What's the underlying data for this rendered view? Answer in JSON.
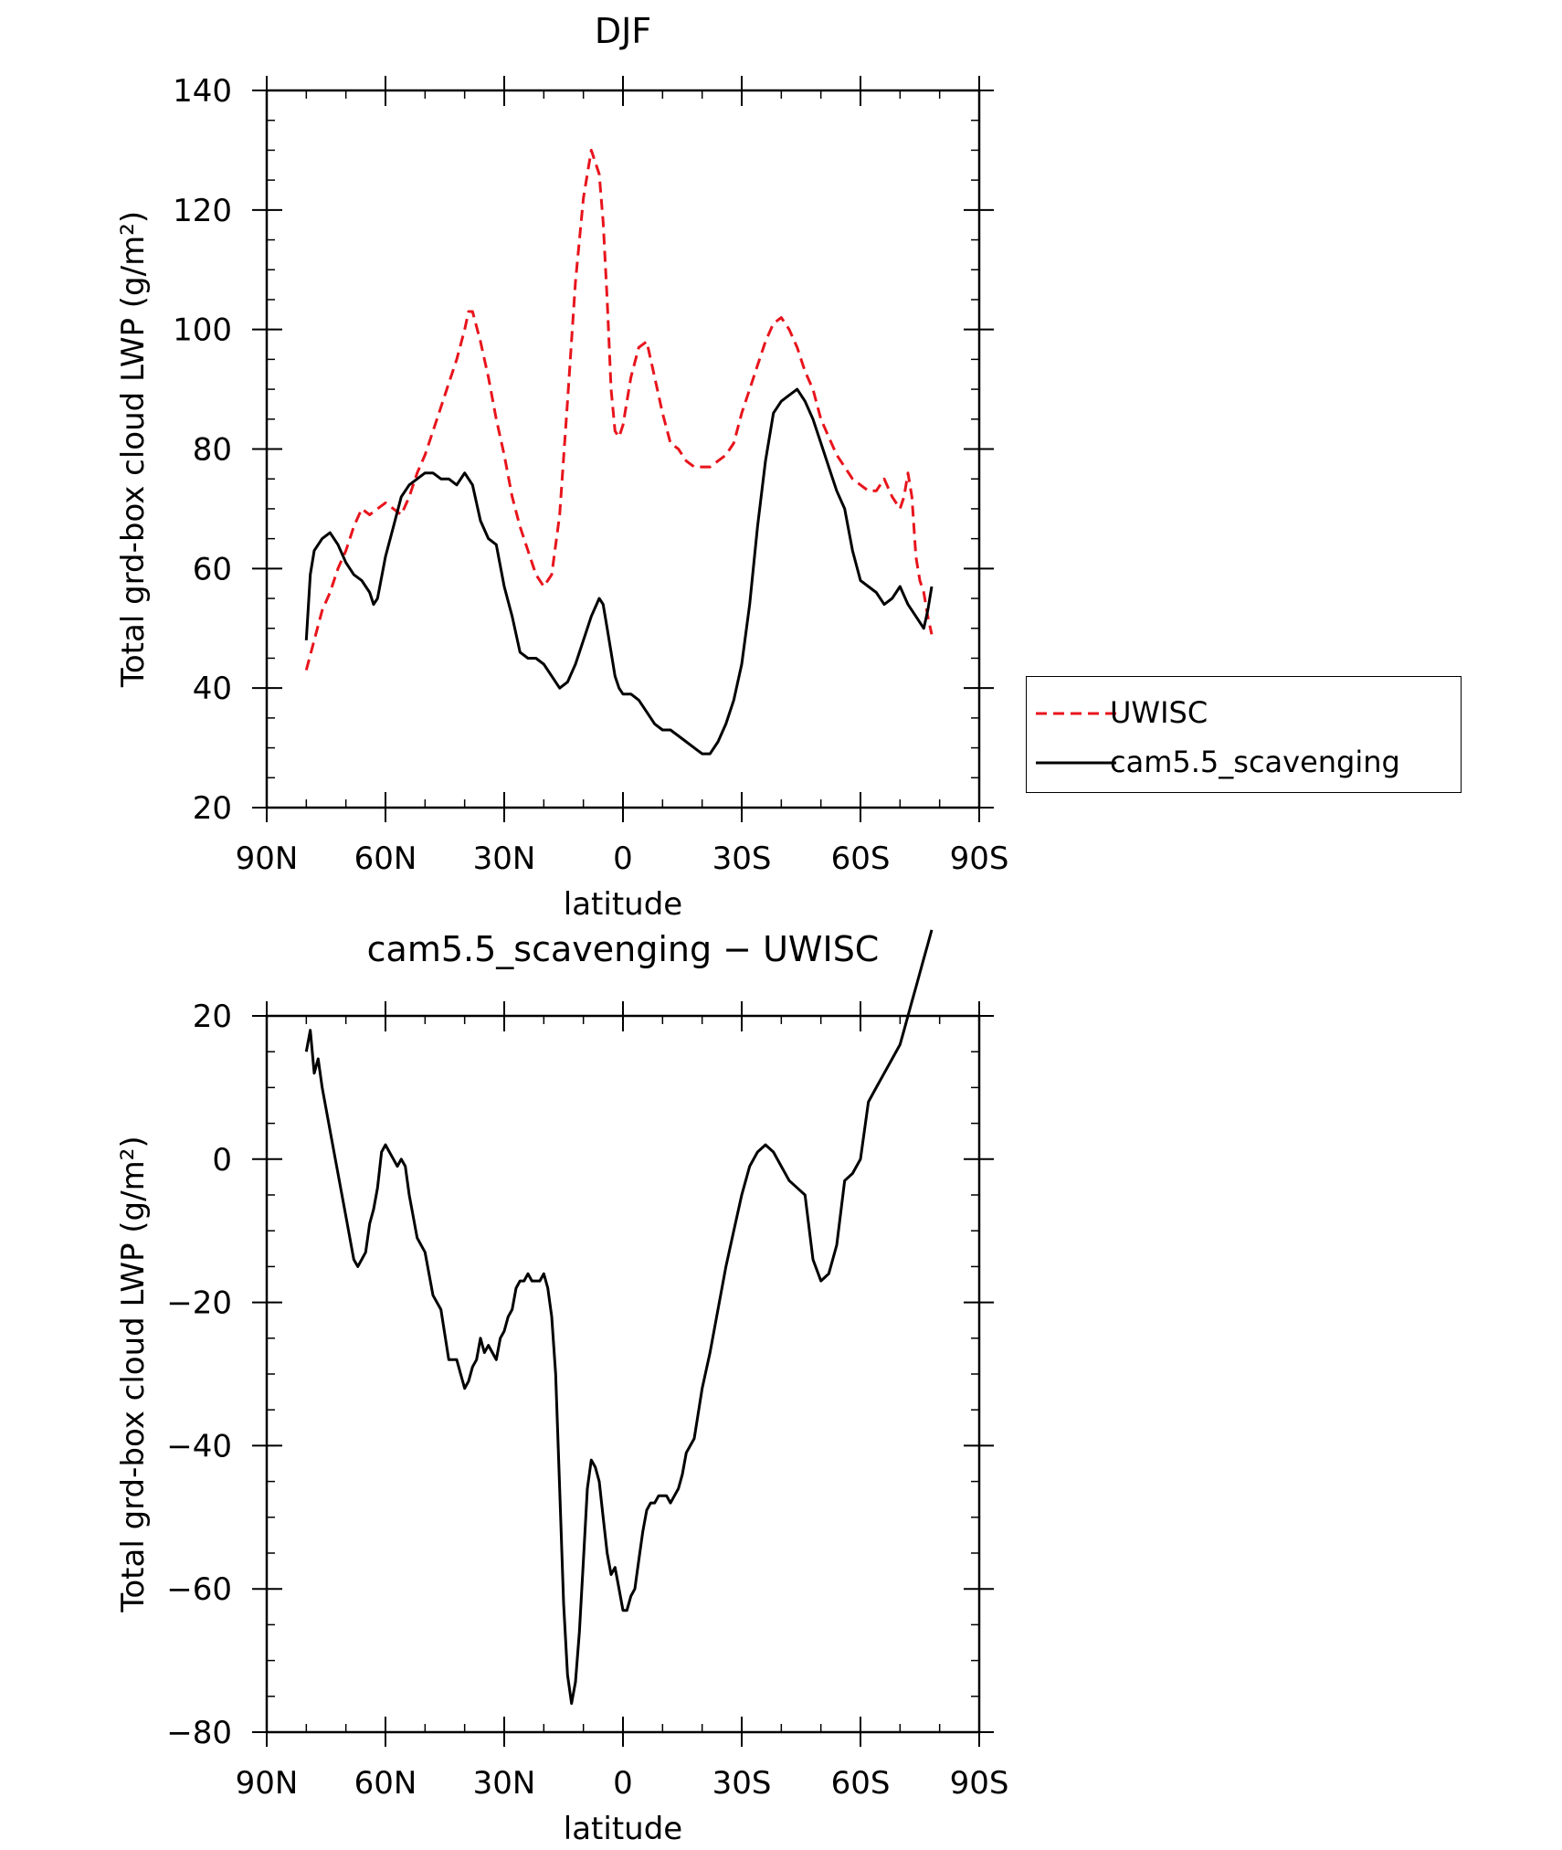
{
  "chart_data": [
    {
      "type": "line",
      "title": "DJF",
      "xlabel": "latitude",
      "ylabel": "Total grd-box cloud LWP (g/m²)",
      "xlim": [
        90,
        -90
      ],
      "ylim": [
        20,
        140
      ],
      "yticks": [
        20,
        40,
        60,
        80,
        100,
        120,
        140
      ],
      "xticks": [
        90,
        60,
        30,
        0,
        -30,
        -60,
        -90
      ],
      "xtick_labels": [
        "90N",
        "60N",
        "30N",
        "0",
        "30S",
        "60S",
        "90S"
      ],
      "legend": {
        "placement": "right",
        "entries": [
          "UWISC",
          "cam5.5_scavenging"
        ]
      },
      "series": [
        {
          "name": "UWISC",
          "color": "#e8141c",
          "dash": "dashed",
          "x": [
            80,
            78,
            76,
            74,
            72,
            70,
            68,
            66,
            64,
            62,
            60,
            58,
            56,
            54,
            52,
            50,
            48,
            46,
            44,
            42,
            40,
            39,
            38,
            36,
            34,
            32,
            30,
            28,
            26,
            24,
            22,
            20,
            18,
            16,
            14,
            12,
            10,
            8,
            6,
            5,
            4,
            3,
            2,
            1,
            0,
            -2,
            -4,
            -6,
            -8,
            -10,
            -12,
            -14,
            -16,
            -18,
            -20,
            -22,
            -24,
            -26,
            -28,
            -30,
            -32,
            -34,
            -36,
            -38,
            -40,
            -42,
            -44,
            -46,
            -48,
            -50,
            -52,
            -54,
            -56,
            -58,
            -60,
            -62,
            -64,
            -66,
            -68,
            -70,
            -71,
            -72,
            -73,
            -74,
            -75,
            -76,
            -77,
            -78
          ],
          "y": [
            43,
            48,
            53,
            56,
            60,
            63,
            67,
            70,
            69,
            70,
            71,
            70,
            69,
            72,
            76,
            79,
            83,
            87,
            91,
            95,
            100,
            103,
            103,
            98,
            92,
            85,
            79,
            72,
            67,
            63,
            59,
            57,
            59,
            69,
            88,
            108,
            122,
            130,
            126,
            118,
            105,
            90,
            83,
            82,
            84,
            92,
            97,
            98,
            92,
            86,
            81,
            80,
            78,
            77,
            77,
            77,
            78,
            79,
            81,
            86,
            90,
            94,
            98,
            101,
            102,
            100,
            97,
            93,
            90,
            85,
            82,
            79,
            77,
            75,
            74,
            73,
            73,
            75,
            72,
            70,
            72,
            76,
            72,
            62,
            58,
            56,
            52,
            49
          ]
        },
        {
          "name": "cam5.5_scavenging",
          "color": "#000000",
          "dash": "solid",
          "x": [
            80,
            79,
            78,
            76,
            74,
            72,
            70,
            68,
            66,
            64,
            63,
            62,
            60,
            58,
            56,
            54,
            52,
            50,
            48,
            46,
            44,
            42,
            40,
            38,
            36,
            34,
            32,
            30,
            28,
            26,
            24,
            22,
            20,
            18,
            16,
            14,
            12,
            10,
            8,
            6,
            5,
            4,
            3,
            2,
            1,
            0,
            -2,
            -4,
            -6,
            -8,
            -10,
            -12,
            -14,
            -16,
            -18,
            -20,
            -22,
            -24,
            -26,
            -28,
            -30,
            -32,
            -34,
            -36,
            -38,
            -40,
            -42,
            -44,
            -46,
            -48,
            -50,
            -52,
            -54,
            -56,
            -58,
            -60,
            -62,
            -64,
            -66,
            -68,
            -70,
            -72,
            -74,
            -76,
            -77,
            -78
          ],
          "y": [
            48,
            59,
            63,
            65,
            66,
            64,
            61,
            59,
            58,
            56,
            54,
            55,
            62,
            67,
            72,
            74,
            75,
            76,
            76,
            75,
            75,
            74,
            76,
            74,
            68,
            65,
            64,
            57,
            52,
            46,
            45,
            45,
            44,
            42,
            40,
            41,
            44,
            48,
            52,
            55,
            54,
            50,
            46,
            42,
            40,
            39,
            39,
            38,
            36,
            34,
            33,
            33,
            32,
            31,
            30,
            29,
            29,
            31,
            34,
            38,
            44,
            54,
            67,
            78,
            86,
            88,
            89,
            90,
            88,
            85,
            81,
            77,
            73,
            70,
            63,
            58,
            57,
            56,
            54,
            55,
            57,
            54,
            52,
            50,
            53,
            57
          ]
        }
      ]
    },
    {
      "type": "line",
      "title": "cam5.5_scavenging − UWISC",
      "xlabel": "latitude",
      "ylabel": "Total grd-box cloud LWP (g/m²)",
      "xlim": [
        90,
        -90
      ],
      "ylim": [
        -80,
        20
      ],
      "yticks": [
        -80,
        -60,
        -40,
        -20,
        0,
        20
      ],
      "ytick_labels": [
        "−80",
        "−60",
        "−40",
        "−20",
        "0",
        "20"
      ],
      "xticks": [
        90,
        60,
        30,
        0,
        -30,
        -60,
        -90
      ],
      "xtick_labels": [
        "90N",
        "60N",
        "30N",
        "0",
        "30S",
        "60S",
        "90S"
      ],
      "series": [
        {
          "color": "#000000",
          "dash": "solid",
          "x": [
            80,
            79,
            78,
            77,
            76,
            75,
            74,
            72,
            70,
            68,
            67,
            66,
            65,
            64,
            63,
            62,
            61,
            60,
            59,
            58,
            57,
            56,
            55,
            54,
            52,
            50,
            48,
            46,
            44,
            42,
            41,
            40,
            39,
            38,
            37,
            36,
            35,
            34,
            33,
            32,
            31,
            30,
            29,
            28,
            27,
            26,
            25,
            24,
            23,
            22,
            21,
            20,
            19,
            18,
            17,
            16,
            15,
            14,
            13,
            12,
            11,
            10,
            9,
            8,
            7,
            6,
            5,
            4,
            3,
            2,
            1,
            0,
            -1,
            -2,
            -3,
            -4,
            -5,
            -6,
            -7,
            -8,
            -9,
            -10,
            -11,
            -12,
            -13,
            -14,
            -15,
            -16,
            -18,
            -20,
            -22,
            -24,
            -26,
            -28,
            -30,
            -32,
            -34,
            -36,
            -38,
            -40,
            -42,
            -44,
            -46,
            -48,
            -50,
            -52,
            -54,
            -56,
            -58,
            -60,
            -62,
            -64,
            -66,
            -68,
            -70,
            -71,
            -72,
            -73,
            -74,
            -75,
            -76,
            -77,
            -78
          ],
          "y": [
            15,
            18,
            12,
            14,
            10,
            7,
            4,
            -2,
            -8,
            -14,
            -15,
            -14,
            -13,
            -9,
            -7,
            -4,
            1,
            2,
            1,
            0,
            -1,
            0,
            -1,
            -5,
            -11,
            -13,
            -19,
            -21,
            -28,
            -28,
            -30,
            -32,
            -31,
            -29,
            -28,
            -25,
            -27,
            -26,
            -27,
            -28,
            -25,
            -24,
            -22,
            -21,
            -18,
            -17,
            -17,
            -16,
            -17,
            -17,
            -17,
            -16,
            -18,
            -22,
            -30,
            -46,
            -62,
            -72,
            -76,
            -73,
            -66,
            -56,
            -46,
            -42,
            -43,
            -45,
            -50,
            -55,
            -58,
            -57,
            -60,
            -63,
            -63,
            -61,
            -60,
            -56,
            -52,
            -49,
            -48,
            -48,
            -47,
            -47,
            -47,
            -48,
            -47,
            -46,
            -44,
            -41,
            -39,
            -32,
            -27,
            -21,
            -15,
            -10,
            -5,
            -1,
            1,
            2,
            1,
            -1,
            -3,
            -4,
            -5,
            -14,
            -17,
            -16,
            -12,
            -3,
            -2,
            0,
            8,
            10,
            12,
            14,
            16,
            18,
            20,
            22,
            24,
            26,
            28,
            30,
            32
          ]
        }
      ]
    }
  ]
}
